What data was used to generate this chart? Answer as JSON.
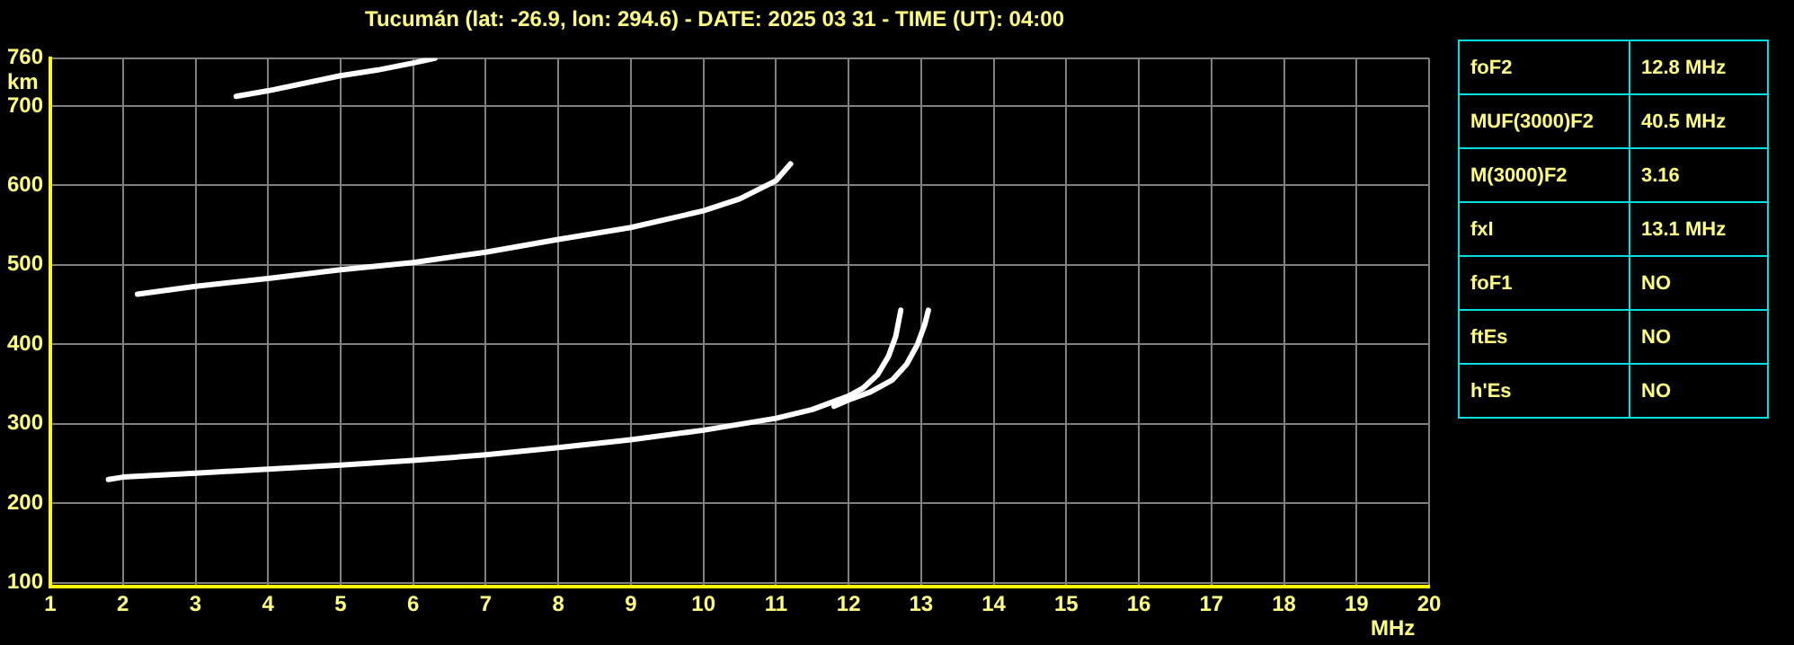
{
  "chart_data": [
    {
      "type": "line",
      "title": "Tucumán (lat: -26.9, lon: 294.6) - DATE: 2025 03 31 - TIME (UT): 04:00",
      "xlabel": "MHz",
      "ylabel": "km",
      "xlim": [
        1,
        20
      ],
      "ylim": [
        95,
        760
      ],
      "xticks": [
        1,
        2,
        3,
        4,
        5,
        6,
        7,
        8,
        9,
        10,
        11,
        12,
        13,
        14,
        15,
        16,
        17,
        18,
        19,
        20
      ],
      "yticks": [
        100,
        200,
        300,
        400,
        500,
        600,
        700,
        760
      ],
      "grid": true,
      "legend": false,
      "marker": "none",
      "line_style": "solid",
      "series": [
        {
          "color": "#ffffff",
          "x": [
            1.8,
            2,
            3,
            4,
            5,
            6,
            7,
            8,
            9,
            10,
            11,
            11.5,
            12,
            12.2,
            12.4,
            12.55,
            12.65,
            12.72
          ],
          "values": [
            230,
            233,
            238,
            243,
            248,
            254,
            261,
            270,
            280,
            292,
            307,
            318,
            335,
            345,
            362,
            385,
            410,
            443
          ]
        },
        {
          "color": "#ffffff",
          "x": [
            11.8,
            12,
            12.3,
            12.6,
            12.8,
            12.95,
            13.05,
            13.1
          ],
          "values": [
            322,
            330,
            340,
            355,
            375,
            400,
            425,
            443
          ]
        },
        {
          "color": "#ffffff",
          "x": [
            2.2,
            3,
            4,
            5,
            6,
            7,
            8,
            9,
            10,
            10.5,
            11,
            11.2
          ],
          "values": [
            463,
            473,
            483,
            494,
            503,
            516,
            532,
            547,
            568,
            583,
            606,
            627
          ]
        },
        {
          "color": "#ffffff",
          "x": [
            3.56,
            4,
            5,
            5.5,
            6,
            6.3
          ],
          "values": [
            712,
            719,
            738,
            745,
            754,
            760
          ]
        }
      ]
    },
    {
      "type": "other",
      "annotations": [
        "foF2",
        "12.8 MHz",
        "MUF(3000)F2",
        "40.5 MHz",
        "M(3000)F2",
        "3.16",
        "fxI",
        "13.1 MHz",
        "foF1",
        "NO",
        "ftEs",
        "NO",
        "h'Es",
        "NO"
      ]
    }
  ]
}
